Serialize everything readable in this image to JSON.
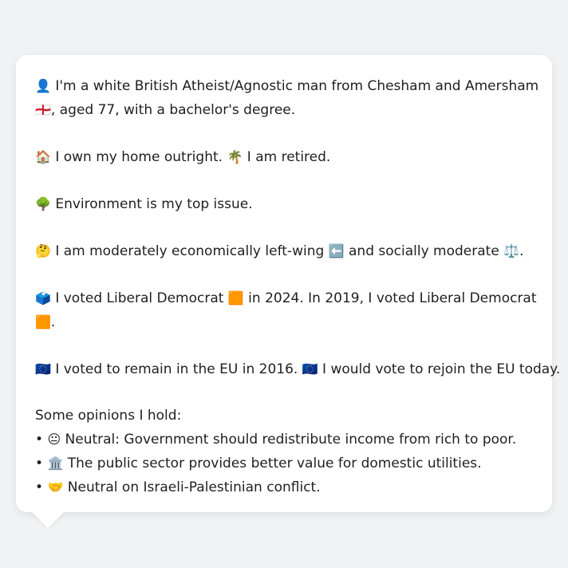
{
  "profile": {
    "p1_l1_icon": "👤",
    "p1_l1_text": "I'm a white British Atheist/Agnostic man from Chesham and Amersham",
    "p1_l2_icon": "🏴󠁧󠁢󠁥󠁮󠁧󠁿",
    "p1_l2_text": ", aged 77, with a bachelor's degree.",
    "p2_icon1": "🏠",
    "p2_text1": "I own my home outright.",
    "p2_icon2": "🌴",
    "p2_text2": "I am retired.",
    "p3_icon": "🌳",
    "p3_text": "Environment is my top issue.",
    "p4_icon": "🤔",
    "p4_text1": "I am moderately economically left-wing",
    "p4_icon2": "⬅️",
    "p4_text2": "and socially moderate",
    "p4_icon3": "⚖️",
    "p4_text3": ".",
    "p5_icon": "🗳️",
    "p5_text1": "I voted Liberal Democrat",
    "p5_icon2": "🟧",
    "p5_text2": "in 2024. In 2019, I voted Liberal Democrat",
    "p5_icon3": "🟧",
    "p5_text3": ".",
    "p6_icon1": "🇪🇺",
    "p6_text1": "I voted to remain in the EU in 2016.",
    "p6_icon2": "🇪🇺",
    "p6_text2": "I would vote to rejoin the EU today.",
    "opinions_heading": "Some opinions I hold:",
    "opinions": [
      {
        "bullet": "•",
        "icon": "😐",
        "text": "Neutral: Government should redistribute income from rich to poor."
      },
      {
        "bullet": "•",
        "icon": "🏛️",
        "text": "The public sector provides better value for domestic utilities."
      },
      {
        "bullet": "•",
        "icon": "🤝",
        "text": "Neutral on Israeli-Palestinian conflict."
      }
    ]
  }
}
